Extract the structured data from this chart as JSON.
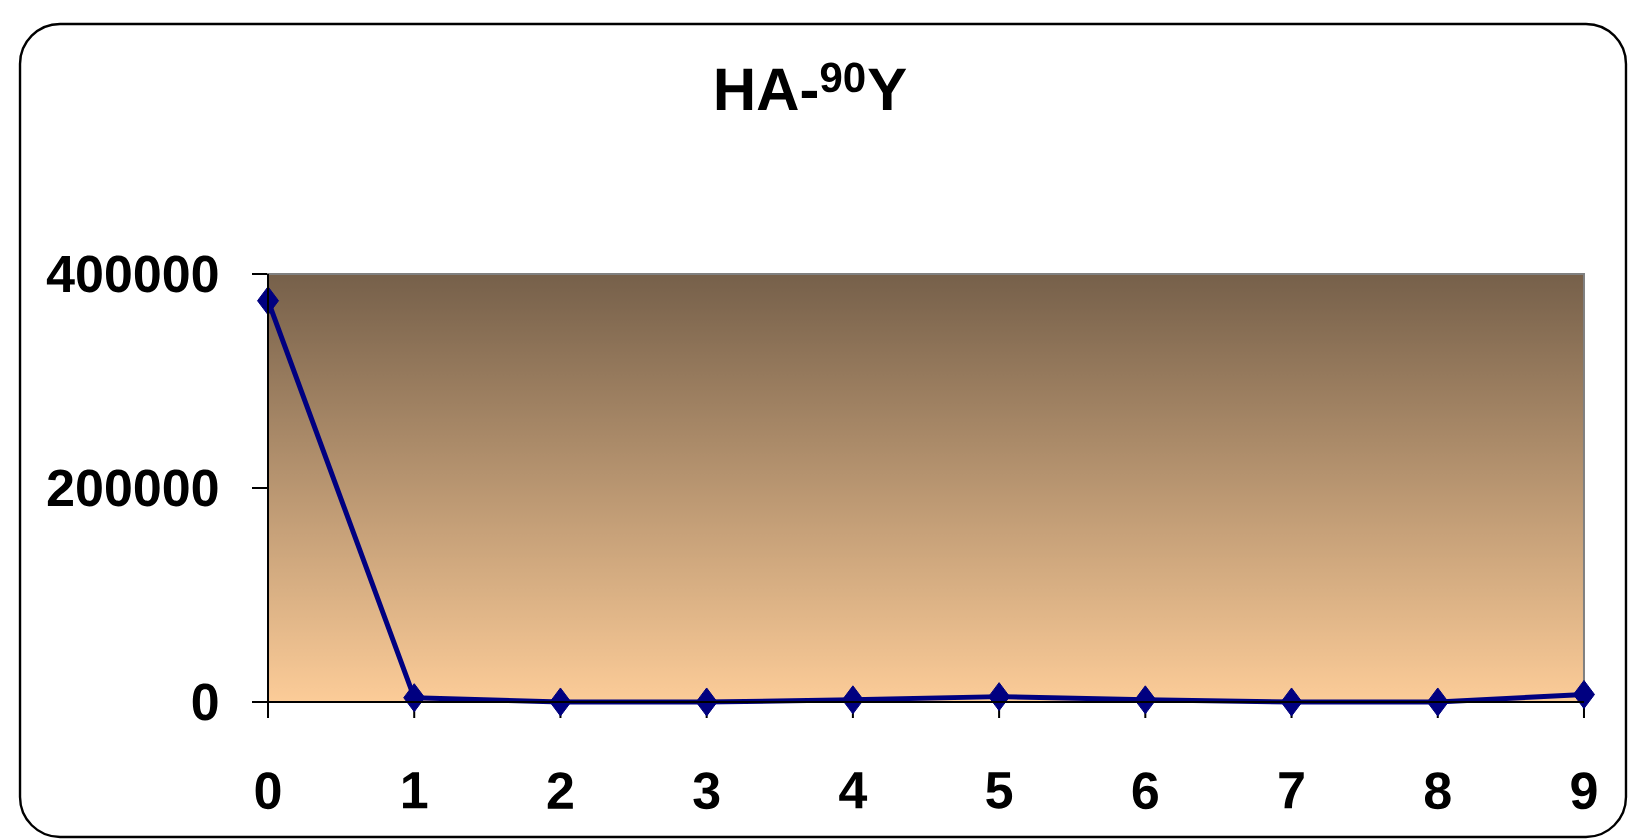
{
  "chart_data": {
    "type": "line",
    "title": "HA-$^{90}$Y",
    "x": [
      0,
      1,
      2,
      3,
      4,
      5,
      6,
      7,
      8,
      9
    ],
    "values": [
      375000,
      4000,
      0,
      0,
      2000,
      5000,
      2000,
      0,
      0,
      7000
    ],
    "color": "#000080",
    "marker": "diamond",
    "line_style": "solid",
    "xlim": [
      0,
      9
    ],
    "ylim": [
      0,
      400000
    ],
    "xticks": [
      0,
      1,
      2,
      3,
      4,
      5,
      6,
      7,
      8,
      9
    ],
    "yticks": [
      0,
      200000,
      400000
    ]
  }
}
